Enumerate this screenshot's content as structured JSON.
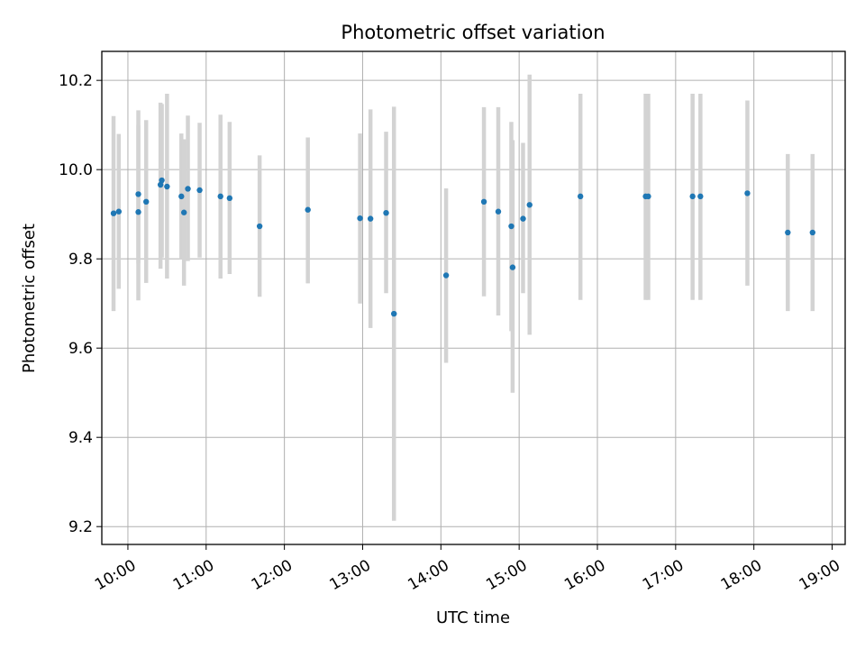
{
  "chart_data": {
    "type": "scatter",
    "title": "Photometric offset variation",
    "xlabel": "UTC time",
    "ylabel": "Photometric offset",
    "x_unit": "UTC time of day (HH:MM)",
    "xlim": [
      "09:40",
      "19:10"
    ],
    "ylim": [
      9.16,
      10.265
    ],
    "x_ticks": [
      "10:00",
      "11:00",
      "12:00",
      "13:00",
      "14:00",
      "15:00",
      "16:00",
      "17:00",
      "18:00",
      "19:00"
    ],
    "y_ticks": [
      "9.2",
      "9.4",
      "9.6",
      "9.8",
      "10.0",
      "10.2"
    ],
    "y_tick_values": [
      9.2,
      9.4,
      9.6,
      9.8,
      10.0,
      10.2
    ],
    "grid": true,
    "marker_color": "#1f77b4",
    "errorbar_color": "#d3d3d3",
    "points": [
      {
        "x": "09:49",
        "y": 9.902,
        "low": 9.683,
        "high": 10.12
      },
      {
        "x": "09:53",
        "y": 9.906,
        "low": 9.733,
        "high": 10.08
      },
      {
        "x": "10:08",
        "y": 9.945,
        "low": 9.79,
        "high": 10.133
      },
      {
        "x": "10:08",
        "y": 9.905,
        "low": 9.707,
        "high": 10.1
      },
      {
        "x": "10:14",
        "y": 9.928,
        "low": 9.746,
        "high": 10.111
      },
      {
        "x": "10:25",
        "y": 9.966,
        "low": 9.778,
        "high": 10.15
      },
      {
        "x": "10:26",
        "y": 9.976,
        "low": 9.803,
        "high": 10.147
      },
      {
        "x": "10:30",
        "y": 9.962,
        "low": 9.756,
        "high": 10.17
      },
      {
        "x": "10:41",
        "y": 9.94,
        "low": 9.8,
        "high": 10.081
      },
      {
        "x": "10:43",
        "y": 9.904,
        "low": 9.74,
        "high": 10.068
      },
      {
        "x": "10:46",
        "y": 9.957,
        "low": 9.795,
        "high": 10.121
      },
      {
        "x": "10:55",
        "y": 9.954,
        "low": 9.803,
        "high": 10.105
      },
      {
        "x": "11:11",
        "y": 9.94,
        "low": 9.756,
        "high": 10.123
      },
      {
        "x": "11:18",
        "y": 9.936,
        "low": 9.766,
        "high": 10.107
      },
      {
        "x": "11:41",
        "y": 9.873,
        "low": 9.715,
        "high": 10.032
      },
      {
        "x": "12:18",
        "y": 9.91,
        "low": 9.745,
        "high": 10.072
      },
      {
        "x": "12:58",
        "y": 9.891,
        "low": 9.7,
        "high": 10.081
      },
      {
        "x": "13:06",
        "y": 9.89,
        "low": 9.645,
        "high": 10.135
      },
      {
        "x": "13:18",
        "y": 9.903,
        "low": 9.723,
        "high": 10.085
      },
      {
        "x": "13:24",
        "y": 9.677,
        "low": 9.213,
        "high": 10.141
      },
      {
        "x": "14:04",
        "y": 9.763,
        "low": 9.567,
        "high": 9.958
      },
      {
        "x": "14:33",
        "y": 9.928,
        "low": 9.716,
        "high": 10.14
      },
      {
        "x": "14:44",
        "y": 9.906,
        "low": 9.673,
        "high": 10.14
      },
      {
        "x": "14:54",
        "y": 9.873,
        "low": 9.638,
        "high": 10.107
      },
      {
        "x": "14:55",
        "y": 9.781,
        "low": 9.5,
        "high": 10.066
      },
      {
        "x": "15:03",
        "y": 9.89,
        "low": 9.723,
        "high": 10.06
      },
      {
        "x": "15:08",
        "y": 9.921,
        "low": 9.63,
        "high": 10.213
      },
      {
        "x": "15:47",
        "y": 9.94,
        "low": 9.708,
        "high": 10.17
      },
      {
        "x": "16:37",
        "y": 9.94,
        "low": 9.708,
        "high": 10.17
      },
      {
        "x": "16:39",
        "y": 9.94,
        "low": 9.708,
        "high": 10.17
      },
      {
        "x": "17:13",
        "y": 9.94,
        "low": 9.708,
        "high": 10.17
      },
      {
        "x": "17:19",
        "y": 9.94,
        "low": 9.708,
        "high": 10.17
      },
      {
        "x": "17:55",
        "y": 9.947,
        "low": 9.74,
        "high": 10.155
      },
      {
        "x": "18:26",
        "y": 9.859,
        "low": 9.683,
        "high": 10.035
      },
      {
        "x": "18:45",
        "y": 9.859,
        "low": 9.683,
        "high": 10.035
      }
    ]
  }
}
